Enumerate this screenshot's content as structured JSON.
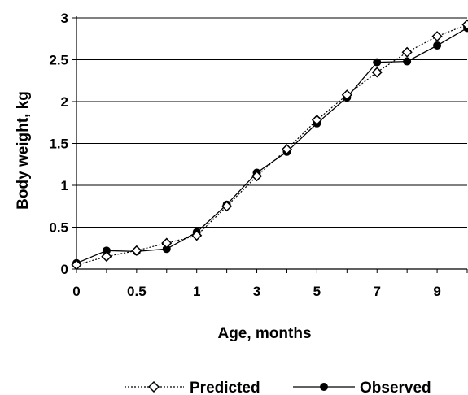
{
  "chart_data": {
    "type": "line",
    "xlabel": "Age, months",
    "ylabel": "Body weight, kg",
    "categories": [
      "0",
      "",
      "0.5",
      "",
      "1",
      "",
      "3",
      "",
      "5",
      "",
      "7",
      "",
      "9",
      ""
    ],
    "x_tick_labels": [
      "0",
      "0.5",
      "1",
      "3",
      "5",
      "7",
      "9"
    ],
    "y_tick_labels": [
      "0",
      "0.5",
      "1",
      "1.5",
      "2",
      "2.5",
      "3"
    ],
    "ylim": [
      0,
      3
    ],
    "y_step": 0.5,
    "grid": "horizontal",
    "legend_position": "bottom",
    "series": [
      {
        "name": "Predicted",
        "style": "dotted-open-diamond",
        "color": "#000000",
        "values": [
          0.05,
          0.15,
          0.22,
          0.31,
          0.4,
          0.75,
          1.11,
          1.43,
          1.78,
          2.08,
          2.35,
          2.59,
          2.78,
          2.92
        ]
      },
      {
        "name": "Observed",
        "style": "solid-filled-circle",
        "color": "#000000",
        "values": [
          0.07,
          0.22,
          0.21,
          0.24,
          0.44,
          0.77,
          1.15,
          1.4,
          1.74,
          2.05,
          2.47,
          2.48,
          2.67,
          2.88
        ]
      }
    ]
  }
}
